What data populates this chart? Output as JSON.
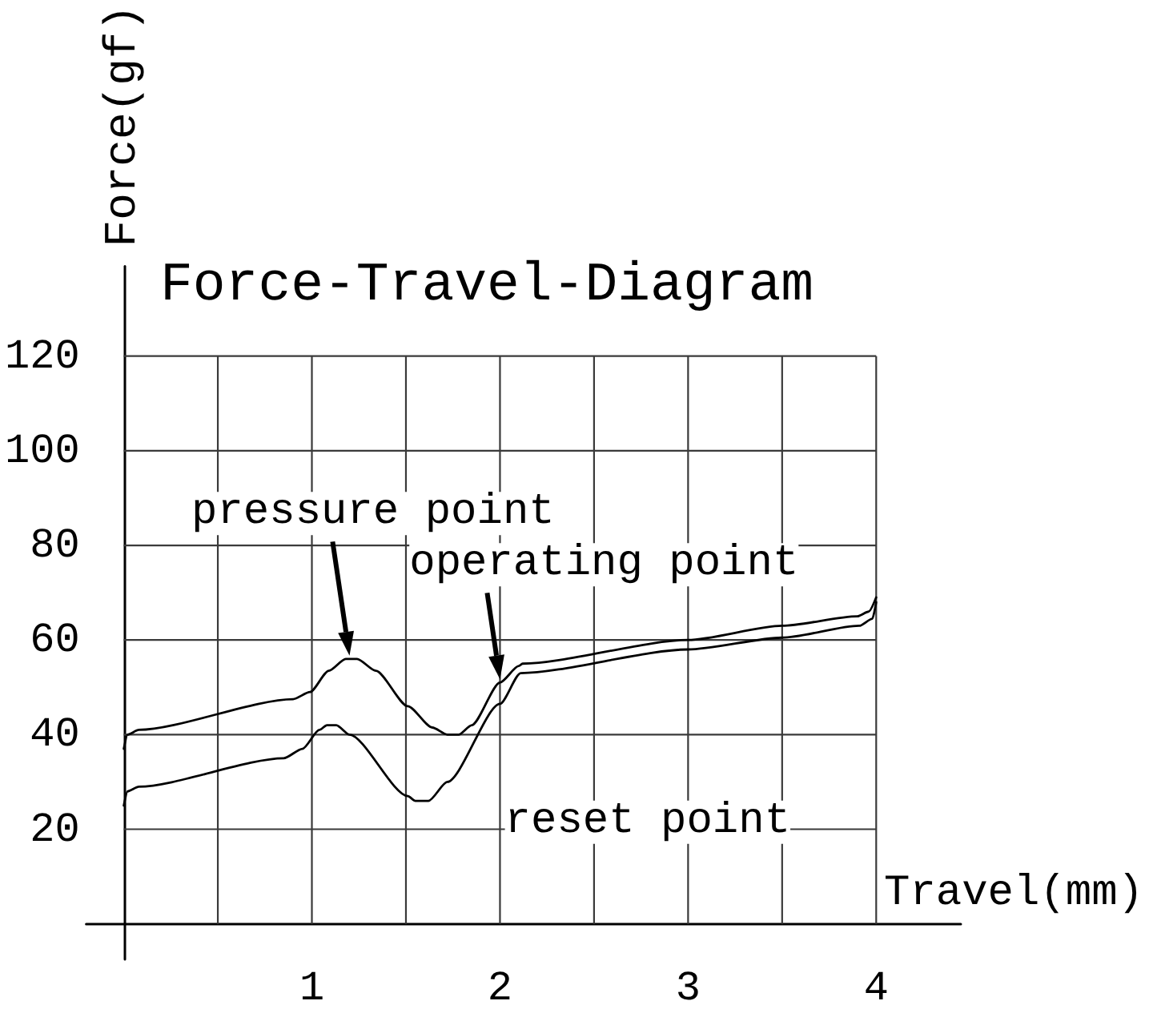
{
  "chart_data": {
    "type": "line",
    "title": "Force-Travel-Diagram",
    "xlabel": "Travel(mm)",
    "ylabel": "Force(gf)",
    "xlim": [
      -0.2,
      4.45
    ],
    "ylim": [
      -7.5,
      139
    ],
    "xticks": [
      {
        "value": 0.5,
        "label": null
      },
      1,
      {
        "value": 1.5,
        "label": null
      },
      2,
      {
        "value": 2.5,
        "label": null
      },
      3,
      {
        "value": 3.5,
        "label": null
      },
      4
    ],
    "yticks": [
      20,
      40,
      60,
      80,
      100,
      120
    ],
    "grid": true,
    "series": [
      {
        "color": "#000000",
        "x": [
          0,
          0.02,
          0.08,
          0.9,
          0.99,
          1.09,
          1.18,
          1.24,
          1.34,
          1.51,
          1.64,
          1.72,
          1.78,
          1.85,
          2.0,
          2.1,
          2.12,
          3.0,
          3.5,
          3.9,
          3.96,
          4.0
        ],
        "values": [
          37,
          40,
          41,
          47.5,
          49,
          53.5,
          56,
          56,
          53.5,
          46,
          41.5,
          40,
          40,
          42,
          51,
          54.5,
          55,
          60,
          63,
          65,
          66,
          69
        ]
      },
      {
        "color": "#000000",
        "x": [
          0,
          0.02,
          0.08,
          0.85,
          0.95,
          1.04,
          1.08,
          1.13,
          1.2,
          1.51,
          1.55,
          1.62,
          1.72,
          2.0,
          2.11,
          3.0,
          3.5,
          3.91,
          3.98,
          4.0
        ],
        "values": [
          25,
          28,
          29,
          35,
          37,
          41,
          42,
          42,
          40,
          27,
          26,
          26,
          30,
          46.5,
          53,
          58,
          60.5,
          63,
          64.5,
          68
        ]
      }
    ],
    "annotations": [
      {
        "text": "pressure point",
        "x": 1.2,
        "y": 56
      },
      {
        "text": "operating point",
        "x": 2.0,
        "y": 51
      },
      "reset point"
    ]
  }
}
